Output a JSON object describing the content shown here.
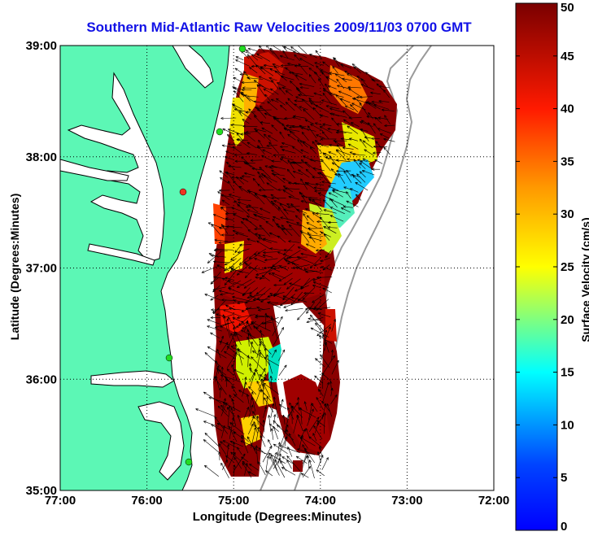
{
  "chart_data": {
    "type": "heatmap",
    "title": "Southern Mid-Atlantic Raw Velocities 2009/11/03 0700 GMT",
    "xlabel": "Longitude (Degrees:Minutes)",
    "ylabel": "Latitude (Degrees:Minutes)",
    "x_ticks": [
      "77:00",
      "76:00",
      "75:00",
      "74:00",
      "73:00",
      "72:00"
    ],
    "y_ticks": [
      "39:00",
      "38:00",
      "37:00",
      "36:00",
      "35:00"
    ],
    "xlim": [
      -77,
      -72
    ],
    "ylim": [
      35,
      39
    ],
    "grid": true,
    "colorbar": {
      "label": "Surface Velocity (cm/s)",
      "ticks": [
        "50",
        "45",
        "40",
        "35",
        "30",
        "25",
        "20",
        "15",
        "10",
        "5",
        "0"
      ],
      "range": [
        0,
        50
      ],
      "colormap": "jet"
    },
    "colors": {
      "land": "#5cf7b5",
      "coastline": "#000000",
      "bathymetry": "#9a9a9a",
      "station": "#22dd22",
      "station_active": "#ee3322",
      "arrows": "#000000"
    }
  }
}
